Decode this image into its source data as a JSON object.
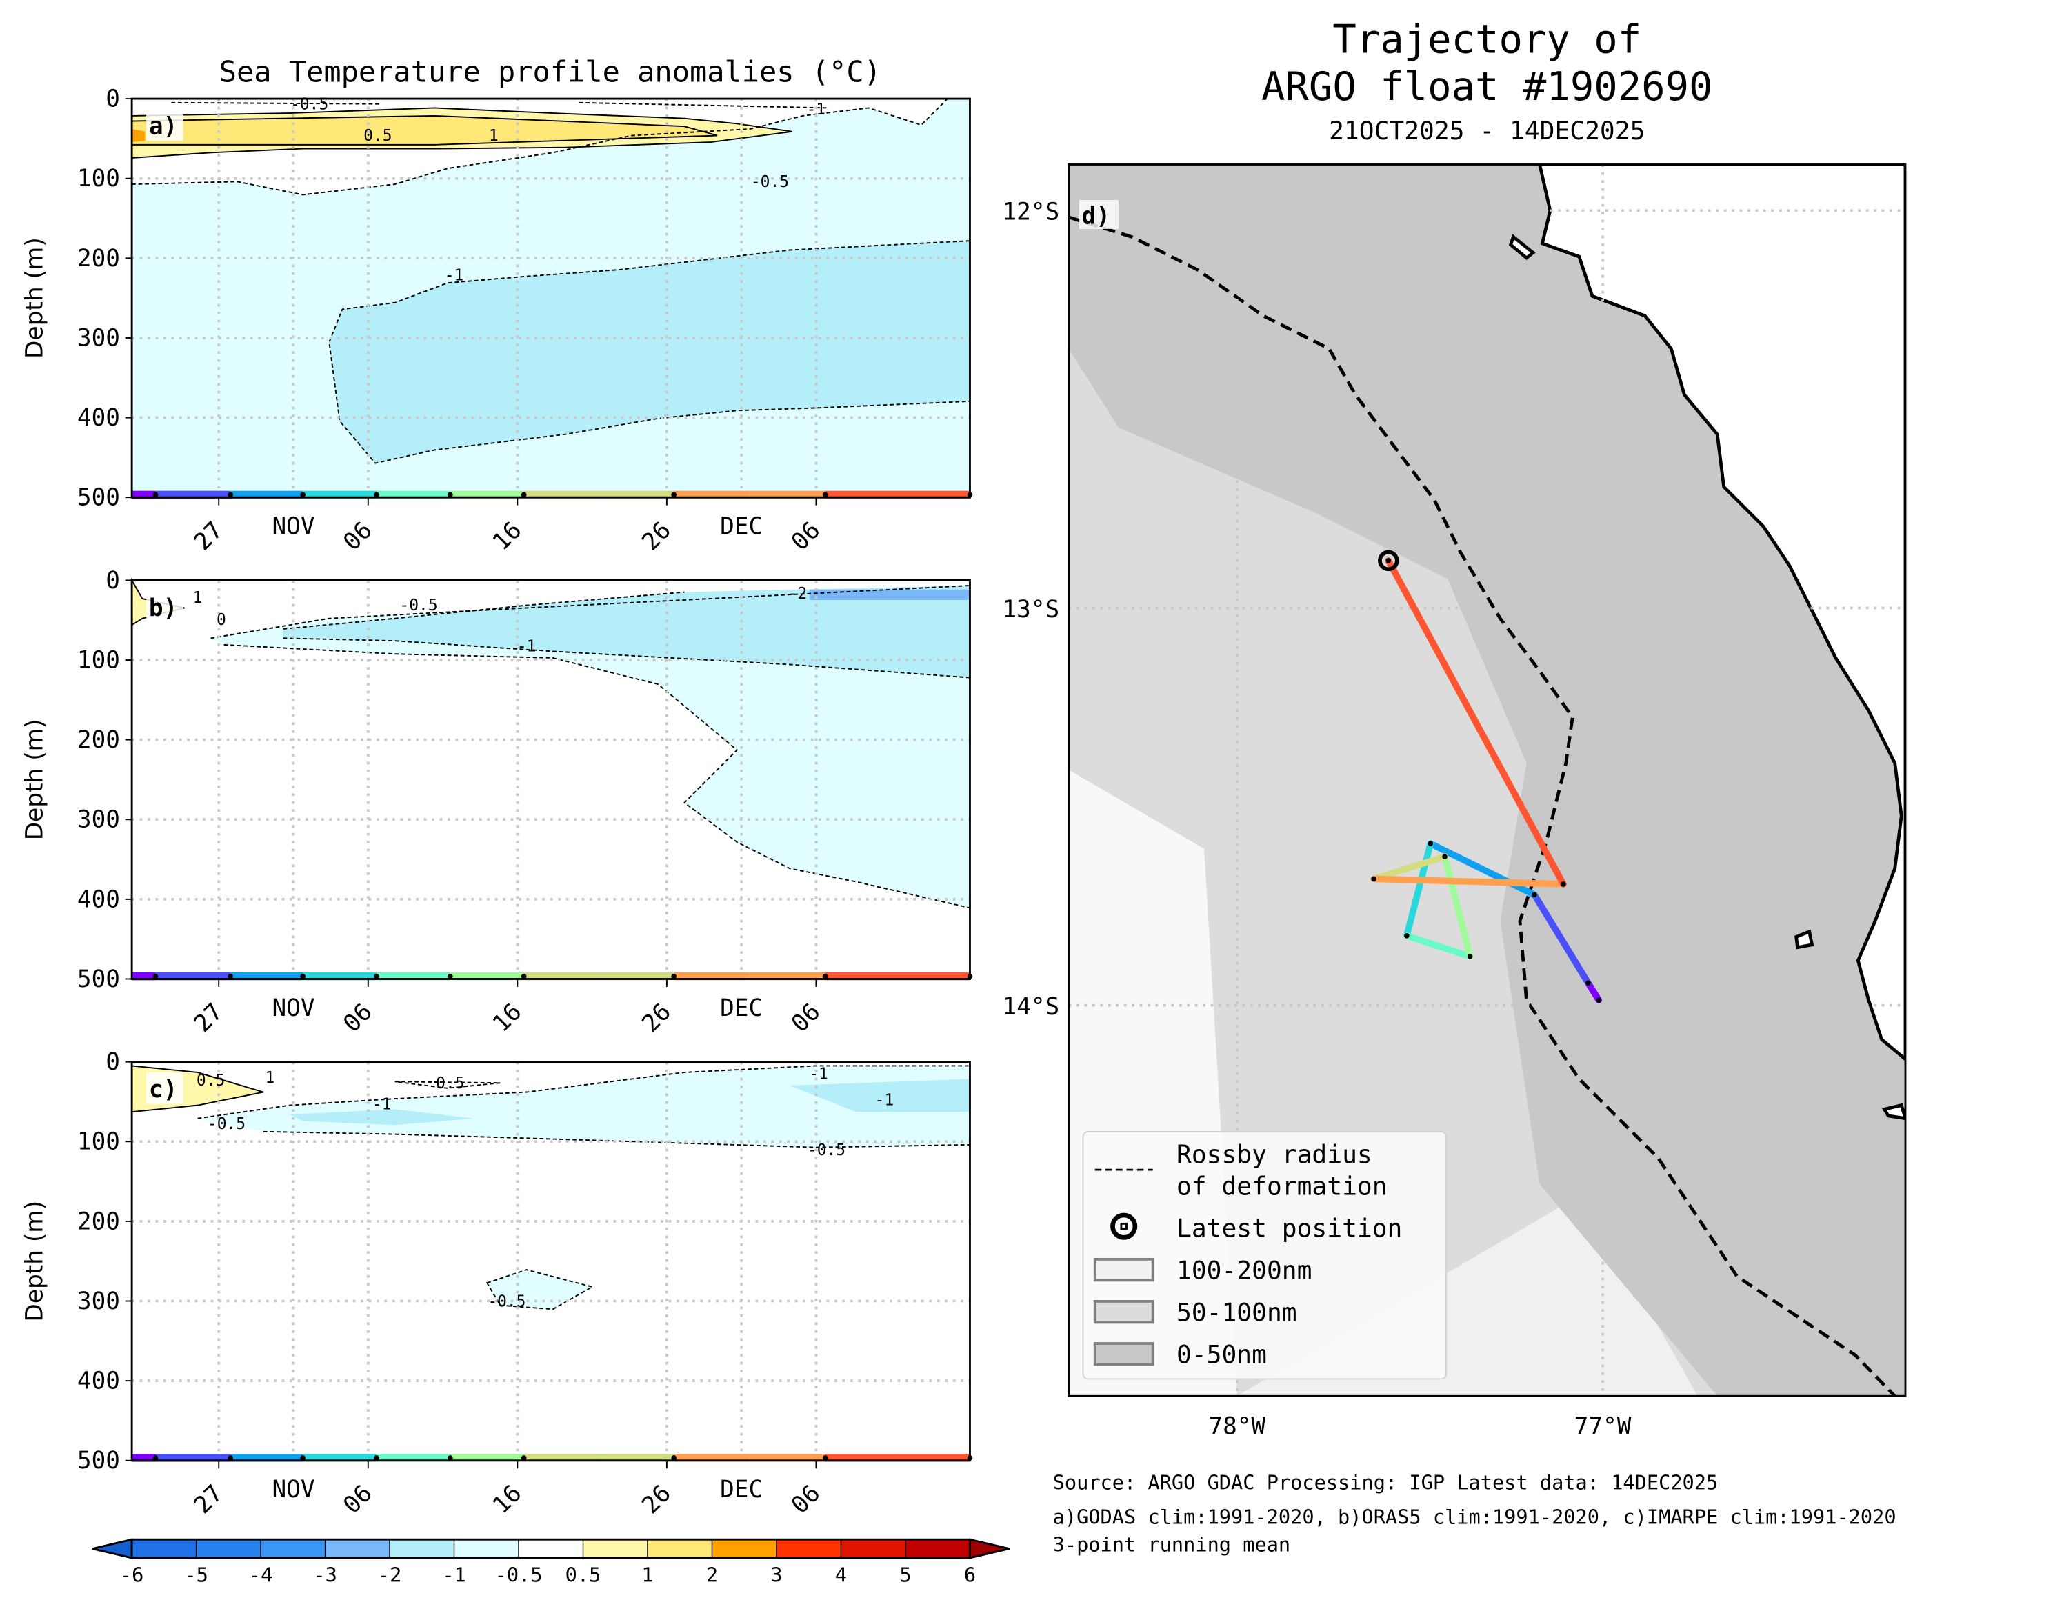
{
  "chart_data": [
    {
      "type": "heatmap",
      "panel_label": "a)",
      "title": "Sea Temperature profile anomalies (°C)",
      "ylabel": "Depth (m)",
      "ylim": [
        500,
        0
      ],
      "yticks": [
        "0",
        "100",
        "200",
        "300",
        "400",
        "500"
      ],
      "xticks": [
        "27",
        "06",
        "16",
        "26",
        "06"
      ],
      "month_labels": [
        "NOV",
        "DEC"
      ],
      "contour_labels": [
        "-0.5",
        "0.5",
        "1",
        "-1",
        "-0.5",
        "-1"
      ],
      "grid": true
    },
    {
      "type": "heatmap",
      "panel_label": "b)",
      "ylabel": "Depth (m)",
      "ylim": [
        500,
        0
      ],
      "yticks": [
        "0",
        "100",
        "200",
        "300",
        "400",
        "500"
      ],
      "xticks": [
        "27",
        "06",
        "16",
        "26",
        "06"
      ],
      "month_labels": [
        "NOV",
        "DEC"
      ],
      "contour_labels": [
        "1",
        "0",
        "-0.5",
        "-1",
        "-2"
      ],
      "grid": true
    },
    {
      "type": "heatmap",
      "panel_label": "c)",
      "ylabel": "Depth (m)",
      "ylim": [
        500,
        0
      ],
      "yticks": [
        "0",
        "100",
        "200",
        "300",
        "400",
        "500"
      ],
      "xticks": [
        "27",
        "06",
        "16",
        "26",
        "06"
      ],
      "month_labels": [
        "NOV",
        "DEC"
      ],
      "contour_labels": [
        "1",
        "0.5",
        "0.5",
        "-0.5",
        "-1",
        "-1",
        "-1",
        "-0.5",
        "-0.5"
      ],
      "grid": true
    },
    {
      "type": "scatter",
      "panel_label": "d)",
      "title_lines": [
        "Trajectory of",
        "ARGO float #1902690"
      ],
      "subtitle": "21OCT2025 - 14DEC2025",
      "lat_ticks": [
        "12°S",
        "13°S",
        "14°S"
      ],
      "lon_ticks": [
        "78°W",
        "77°W"
      ],
      "xlim": [
        -78.46,
        -76.17
      ],
      "ylim": [
        -14.99,
        -11.88
      ],
      "trajectory": {
        "lon": [
          -77.011,
          -77.04,
          -77.187,
          -77.471,
          -77.536,
          -77.363,
          -77.432,
          -77.626,
          -77.108,
          -77.586
        ],
        "lat": [
          -13.987,
          -13.944,
          -13.722,
          -13.593,
          -13.825,
          -13.877,
          -13.626,
          -13.682,
          -13.695,
          -12.881
        ],
        "colors": [
          "#7f00ff",
          "#4a50f8",
          "#10a0f0",
          "#2ad8dc",
          "#6afac8",
          "#a0fa9a",
          "#d4dc80",
          "#ffa050",
          "#ff5530"
        ]
      },
      "legend": {
        "placement": "lower-left",
        "entries": [
          "Rossby radius\nof deformation",
          "Latest position",
          "100-200nm",
          "50-100nm",
          "0-50nm"
        ],
        "rossby_line1": "Rossby radius",
        "rossby_line2": "of deformation",
        "latest": "Latest position",
        "band_100_200": "100-200nm",
        "band_50_100": "50-100nm",
        "band_0_50": "0-50nm"
      },
      "band_colors": {
        "0-50nm": "#c8c8c8",
        "50-100nm": "#dcdcdc",
        "100-200nm": "#f0f0f0"
      }
    }
  ],
  "colorbar": {
    "ticks": [
      "-6",
      "-5",
      "-4",
      "-3",
      "-2",
      "-1",
      "-0.5",
      "0.5",
      "1",
      "2",
      "3",
      "4",
      "5",
      "6"
    ],
    "colors": [
      "#2070e8",
      "#2a82ee",
      "#3c96f5",
      "#78b8f8",
      "#b4eef8",
      "#e0feff",
      "#ffffff",
      "#fff8aa",
      "#ffe878",
      "#ffa000",
      "#ff3200",
      "#e11400",
      "#c00000"
    ],
    "under_color": "#1460d0",
    "over_color": "#a00000"
  },
  "footer": {
    "line1": "Source: ARGO GDAC    Processing: IGP    Latest data: 14DEC2025",
    "line2": "a)GODAS clim:1991-2020, b)ORAS5 clim:1991-2020, c)IMARPE clim:1991-2020",
    "line3": "3-point running mean"
  },
  "track_bar": {
    "colors": [
      "#7f00ff",
      "#4a50f8",
      "#10a0f0",
      "#2ad8dc",
      "#6afac8",
      "#a0fa9a",
      "#d4dc80",
      "#d4dc80",
      "#ffa050",
      "#ffa050",
      "#ff5530",
      "#ff5530"
    ]
  }
}
